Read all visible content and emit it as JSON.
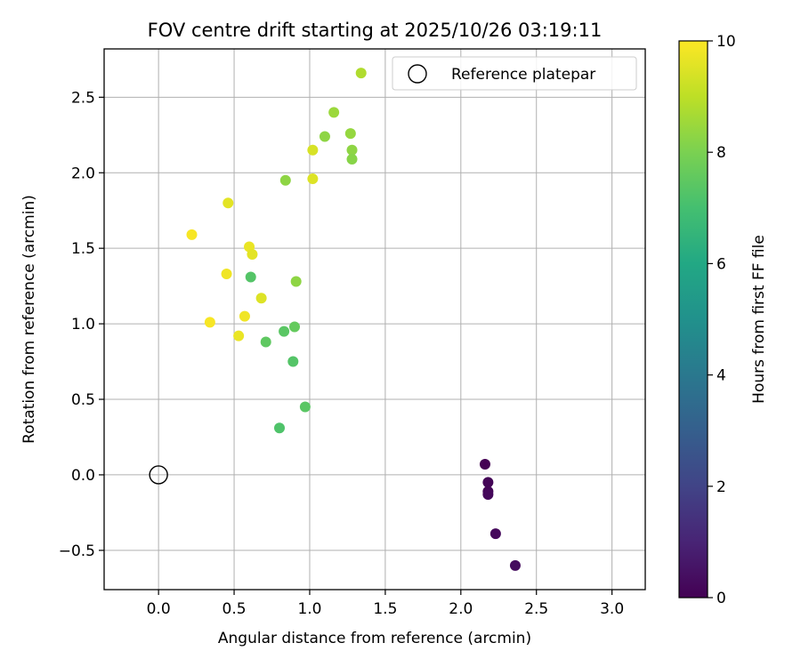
{
  "chart_data": {
    "type": "scatter",
    "title": "FOV centre drift starting at 2025/10/26 03:19:11",
    "xlabel": "Angular distance from reference (arcmin)",
    "ylabel": "Rotation from reference (arcmin)",
    "xlim": [
      -0.36,
      3.22
    ],
    "ylim": [
      -0.76,
      2.82
    ],
    "xticks": [
      0.0,
      0.5,
      1.0,
      1.5,
      2.0,
      2.5,
      3.0
    ],
    "xtick_labels": [
      "0.0",
      "0.5",
      "1.0",
      "1.5",
      "2.0",
      "2.5",
      "3.0"
    ],
    "yticks": [
      -0.5,
      0.0,
      0.5,
      1.0,
      1.5,
      2.0,
      2.5
    ],
    "ytick_labels": [
      "−0.5",
      "0.0",
      "0.5",
      "1.0",
      "1.5",
      "2.0",
      "2.5"
    ],
    "grid": true,
    "legend": {
      "placement": "top-right",
      "entries": [
        "Reference platepar"
      ]
    },
    "reference_point": {
      "x": 0.0,
      "y": 0.0,
      "label": "Reference platepar"
    },
    "colorbar": {
      "label": "Hours from first FF file",
      "colormap": "viridis",
      "range": [
        0,
        10
      ],
      "ticks": [
        0,
        2,
        4,
        6,
        8,
        10
      ],
      "tick_labels": [
        "0",
        "2",
        "4",
        "6",
        "8",
        "10"
      ]
    },
    "points": [
      {
        "x": 2.16,
        "y": 0.07,
        "hours": 0.0
      },
      {
        "x": 2.18,
        "y": -0.05,
        "hours": 0.1
      },
      {
        "x": 2.18,
        "y": -0.11,
        "hours": 0.1
      },
      {
        "x": 2.18,
        "y": -0.13,
        "hours": 0.2
      },
      {
        "x": 2.23,
        "y": -0.39,
        "hours": 0.2
      },
      {
        "x": 2.36,
        "y": -0.6,
        "hours": 0.3
      },
      {
        "x": 0.8,
        "y": 0.31,
        "hours": 7.2
      },
      {
        "x": 0.97,
        "y": 0.45,
        "hours": 7.4
      },
      {
        "x": 0.89,
        "y": 0.75,
        "hours": 7.3
      },
      {
        "x": 0.71,
        "y": 0.88,
        "hours": 7.5
      },
      {
        "x": 0.83,
        "y": 0.95,
        "hours": 7.4
      },
      {
        "x": 0.9,
        "y": 0.98,
        "hours": 7.6
      },
      {
        "x": 0.61,
        "y": 1.31,
        "hours": 7.3
      },
      {
        "x": 0.91,
        "y": 1.28,
        "hours": 8.3
      },
      {
        "x": 0.84,
        "y": 1.95,
        "hours": 8.3
      },
      {
        "x": 1.1,
        "y": 2.24,
        "hours": 8.3
      },
      {
        "x": 1.16,
        "y": 2.4,
        "hours": 8.5
      },
      {
        "x": 1.27,
        "y": 2.26,
        "hours": 8.4
      },
      {
        "x": 1.28,
        "y": 2.15,
        "hours": 8.3
      },
      {
        "x": 1.28,
        "y": 2.09,
        "hours": 8.2
      },
      {
        "x": 1.34,
        "y": 2.66,
        "hours": 8.8
      },
      {
        "x": 1.02,
        "y": 1.96,
        "hours": 9.5
      },
      {
        "x": 1.02,
        "y": 2.15,
        "hours": 9.4
      },
      {
        "x": 0.46,
        "y": 1.8,
        "hours": 9.6
      },
      {
        "x": 0.22,
        "y": 1.59,
        "hours": 9.9
      },
      {
        "x": 0.6,
        "y": 1.51,
        "hours": 9.7
      },
      {
        "x": 0.62,
        "y": 1.46,
        "hours": 9.6
      },
      {
        "x": 0.45,
        "y": 1.33,
        "hours": 9.8
      },
      {
        "x": 0.68,
        "y": 1.17,
        "hours": 9.5
      },
      {
        "x": 0.34,
        "y": 1.01,
        "hours": 9.9
      },
      {
        "x": 0.57,
        "y": 1.05,
        "hours": 9.8
      },
      {
        "x": 0.53,
        "y": 0.92,
        "hours": 9.7
      }
    ]
  }
}
